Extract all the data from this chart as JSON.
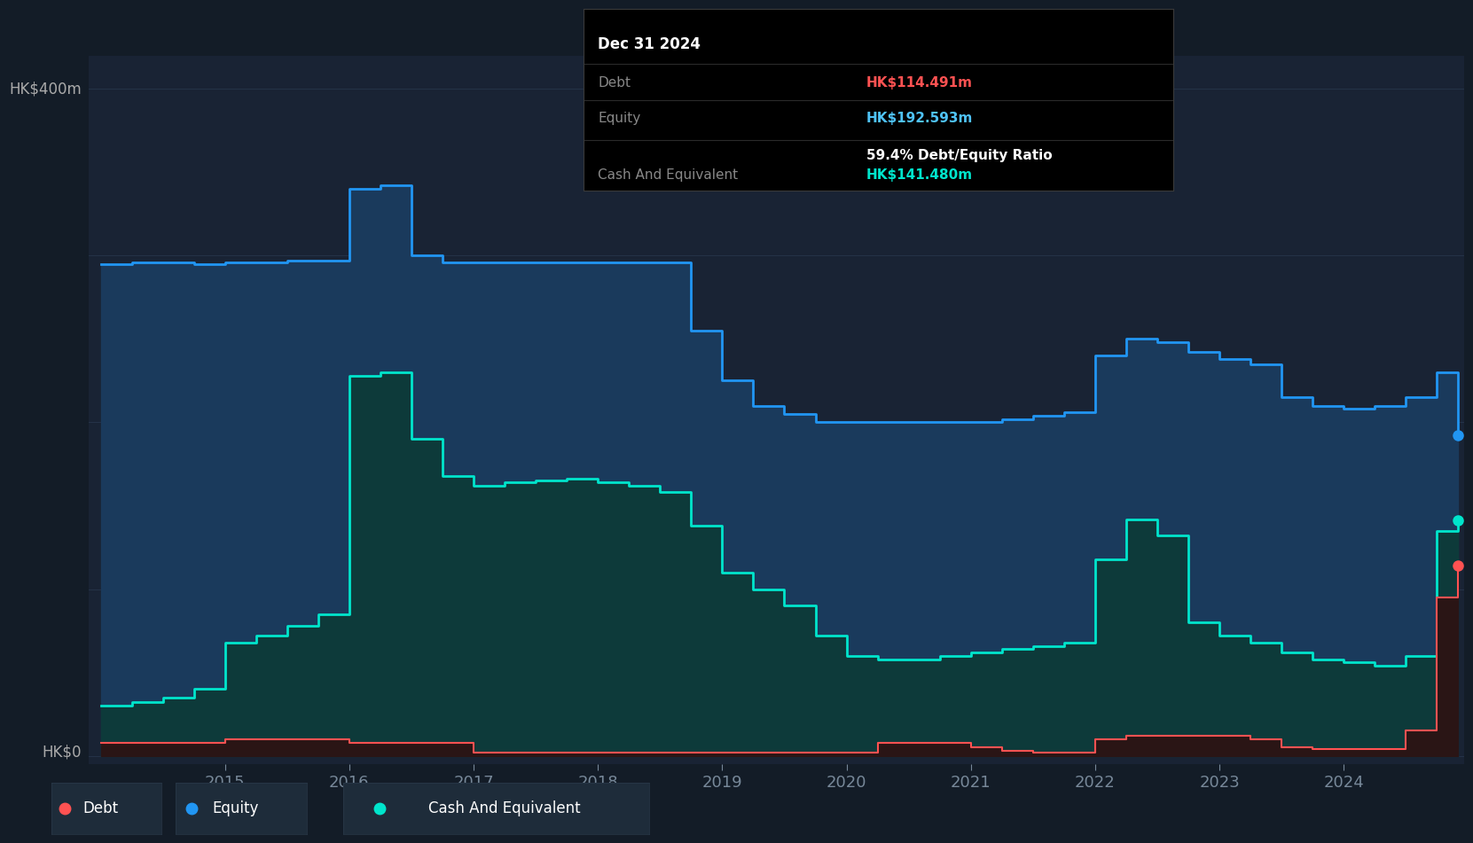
{
  "background_color": "#131c27",
  "plot_bg_color": "#192334",
  "ylabel_top": "HK$400m",
  "ylabel_bottom": "HK$0",
  "ylim": [
    -5,
    420
  ],
  "equity_color": "#2196f3",
  "equity_fill_color": "#1a3a5c",
  "cash_color": "#00e5cc",
  "cash_fill_color": "#0d3a3a",
  "debt_color": "#ff5252",
  "debt_fill_color": "#2a1515",
  "legend_debt_color": "#ff5252",
  "legend_equity_color": "#2196f3",
  "legend_cash_color": "#00e5cc",
  "dates": [
    2014.0,
    2014.25,
    2014.5,
    2014.75,
    2015.0,
    2015.25,
    2015.5,
    2015.75,
    2016.0,
    2016.25,
    2016.5,
    2016.75,
    2017.0,
    2017.25,
    2017.5,
    2017.75,
    2018.0,
    2018.25,
    2018.5,
    2018.75,
    2019.0,
    2019.25,
    2019.5,
    2019.75,
    2020.0,
    2020.25,
    2020.5,
    2020.75,
    2021.0,
    2021.25,
    2021.5,
    2021.75,
    2022.0,
    2022.25,
    2022.5,
    2022.75,
    2023.0,
    2023.25,
    2023.5,
    2023.75,
    2024.0,
    2024.25,
    2024.5,
    2024.75,
    2024.92
  ],
  "equity": [
    295,
    296,
    296,
    295,
    296,
    296,
    297,
    297,
    340,
    342,
    300,
    296,
    296,
    296,
    296,
    296,
    296,
    296,
    296,
    255,
    225,
    210,
    205,
    200,
    200,
    200,
    200,
    200,
    200,
    202,
    204,
    206,
    240,
    250,
    248,
    242,
    238,
    235,
    215,
    210,
    208,
    210,
    215,
    230,
    192
  ],
  "cash": [
    30,
    32,
    35,
    40,
    68,
    72,
    78,
    85,
    228,
    230,
    190,
    168,
    162,
    164,
    165,
    166,
    164,
    162,
    158,
    138,
    110,
    100,
    90,
    72,
    60,
    58,
    58,
    60,
    62,
    64,
    66,
    68,
    118,
    142,
    132,
    80,
    72,
    68,
    62,
    58,
    56,
    54,
    60,
    135,
    141
  ],
  "debt": [
    8,
    8,
    8,
    8,
    10,
    10,
    10,
    10,
    8,
    8,
    8,
    8,
    2,
    2,
    2,
    2,
    2,
    2,
    2,
    2,
    2,
    2,
    2,
    2,
    2,
    8,
    8,
    8,
    5,
    3,
    2,
    2,
    10,
    12,
    12,
    12,
    12,
    10,
    5,
    4,
    4,
    4,
    15,
    95,
    114
  ],
  "xticks": [
    2015,
    2016,
    2017,
    2018,
    2019,
    2020,
    2021,
    2022,
    2023,
    2024
  ],
  "xtick_labels": [
    "2015",
    "2016",
    "2017",
    "2018",
    "2019",
    "2020",
    "2021",
    "2022",
    "2023",
    "2024"
  ],
  "gridline_color": "#2a3a50",
  "gridline_alpha": 0.7,
  "tooltip": {
    "date": "Dec 31 2024",
    "debt_label": "Debt",
    "debt_value": "HK$114.491m",
    "equity_label": "Equity",
    "equity_value": "HK$192.593m",
    "ratio_text": "59.4% Debt/Equity Ratio",
    "cash_label": "Cash And Equivalent",
    "cash_value": "HK$141.480m",
    "debt_color": "#ff5252",
    "equity_color": "#4fc3f7",
    "cash_color": "#00e5cc",
    "ratio_color": "#ffffff",
    "label_color": "#888888"
  }
}
